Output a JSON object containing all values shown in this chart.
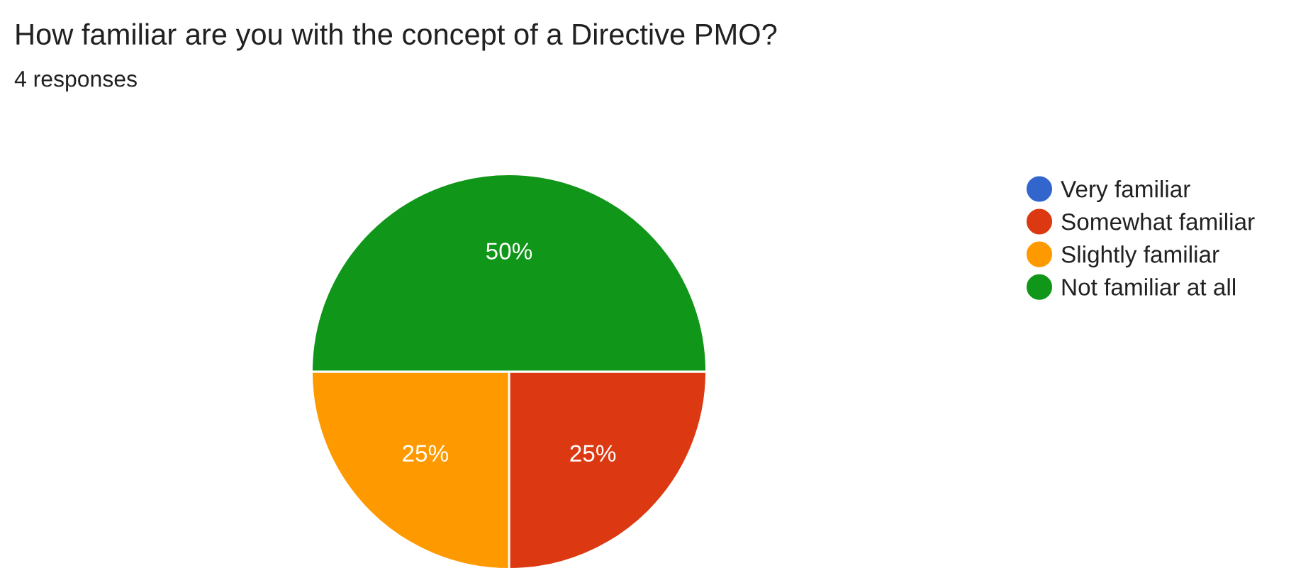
{
  "chart_data": {
    "type": "pie",
    "title": "How familiar are you with the concept of a Directive PMO?",
    "subtitle": "4 responses",
    "categories": [
      "Very familiar",
      "Somewhat familiar",
      "Slightly familiar",
      "Not familiar at all"
    ],
    "values": [
      0,
      25,
      25,
      50
    ],
    "colors": [
      "#3366cc",
      "#dc3912",
      "#ff9900",
      "#109618"
    ],
    "value_labels": [
      null,
      "25%",
      "25%",
      "50%"
    ],
    "legend": "right"
  }
}
